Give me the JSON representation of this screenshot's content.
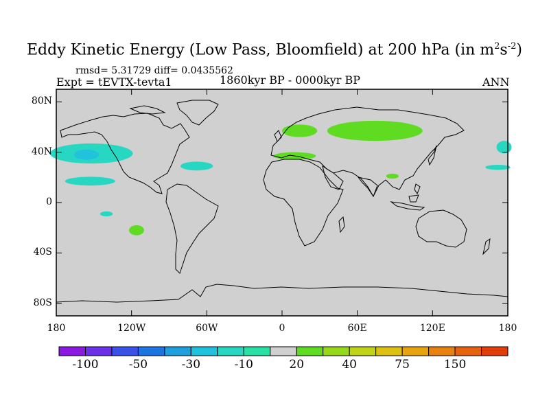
{
  "header": {
    "title_main": "Eddy Kinetic Energy (Low Pass, Bloomfield) at 200 hPa (in m",
    "title_sup1": "2",
    "title_mid": "s",
    "title_sup2": "-2",
    "title_end": ")",
    "stats": "rmsd= 5.31729 diff= 0.0435562",
    "expt": "Expt = tEVTX-tevta1",
    "period": "1860kyr BP - 0000kyr BP",
    "season": "ANN"
  },
  "map": {
    "projection": "cylindrical equidistant",
    "lon_range": [
      -180,
      180
    ],
    "lat_range": [
      -90,
      90
    ],
    "ocean_land_color": "#d0d0d0",
    "y_ticks": [
      {
        "lat": 80,
        "label": "80N"
      },
      {
        "lat": 40,
        "label": "40N"
      },
      {
        "lat": 0,
        "label": "0"
      },
      {
        "lat": -40,
        "label": "40S"
      },
      {
        "lat": -80,
        "label": "80S"
      }
    ],
    "x_ticks": [
      {
        "lon": -180,
        "label": "180"
      },
      {
        "lon": -120,
        "label": "120W"
      },
      {
        "lon": -60,
        "label": "60W"
      },
      {
        "lon": 0,
        "label": "0"
      },
      {
        "lon": 60,
        "label": "60E"
      },
      {
        "lon": 120,
        "label": "120E"
      },
      {
        "lon": 180,
        "label": "180"
      }
    ]
  },
  "colorbar": {
    "colors": [
      "#8b1ae0",
      "#6a2fe6",
      "#3a50e6",
      "#1f74e3",
      "#1f9fde",
      "#20c2dc",
      "#28d7c2",
      "#29e0a6",
      "#d0d0d0",
      "#5fdc22",
      "#97d81a",
      "#bfd418",
      "#dcc013",
      "#e7a310",
      "#e7820f",
      "#e5620e",
      "#e23d0c"
    ],
    "labels": [
      {
        "index": 1,
        "text": "-100"
      },
      {
        "index": 3,
        "text": "-50"
      },
      {
        "index": 5,
        "text": "-30"
      },
      {
        "index": 7,
        "text": "-10"
      },
      {
        "index": 9,
        "text": "20"
      },
      {
        "index": 11,
        "text": "40"
      },
      {
        "index": 13,
        "text": "75"
      },
      {
        "index": 15,
        "text": "150"
      }
    ]
  },
  "anomaly_regions": [
    {
      "name": "north-pacific-negative",
      "color": "#28d7c2",
      "center": [
        -152,
        39
      ],
      "radius": [
        33,
        8
      ]
    },
    {
      "name": "north-pacific-core",
      "color": "#20c2dc",
      "center": [
        -156,
        38
      ],
      "radius": [
        10,
        4
      ]
    },
    {
      "name": "subtropical-pacific-negative",
      "color": "#28d7c2",
      "center": [
        -153,
        17
      ],
      "radius": [
        20,
        3.5
      ]
    },
    {
      "name": "gulf-stream-negative",
      "color": "#28d7c2",
      "center": [
        -68,
        29
      ],
      "radius": [
        13,
        3.5
      ]
    },
    {
      "name": "south-pacific-negative",
      "color": "#28d7c2",
      "center": [
        -140,
        -9
      ],
      "radius": [
        5,
        2
      ]
    },
    {
      "name": "south-pacific-positive",
      "color": "#5fdc22",
      "center": [
        -116,
        -22
      ],
      "radius": [
        6,
        4
      ]
    },
    {
      "name": "eurasia-positive",
      "color": "#5fdc22",
      "center": [
        74,
        57
      ],
      "radius": [
        38,
        8
      ]
    },
    {
      "name": "scandinavia-positive",
      "color": "#5fdc22",
      "center": [
        14,
        57
      ],
      "radius": [
        14,
        5
      ]
    },
    {
      "name": "mediterranean-positive",
      "color": "#5fdc22",
      "center": [
        10,
        37
      ],
      "radius": [
        17,
        3
      ]
    },
    {
      "name": "tibet-positive",
      "color": "#5fdc22",
      "center": [
        88,
        21
      ],
      "radius": [
        5,
        2
      ]
    },
    {
      "name": "dateline-east-negative",
      "color": "#28d7c2",
      "center": [
        177,
        44
      ],
      "radius": [
        6,
        5
      ]
    },
    {
      "name": "dateline-east-lower-negative",
      "color": "#28d7c2",
      "center": [
        172,
        28
      ],
      "radius": [
        10,
        2
      ]
    }
  ]
}
